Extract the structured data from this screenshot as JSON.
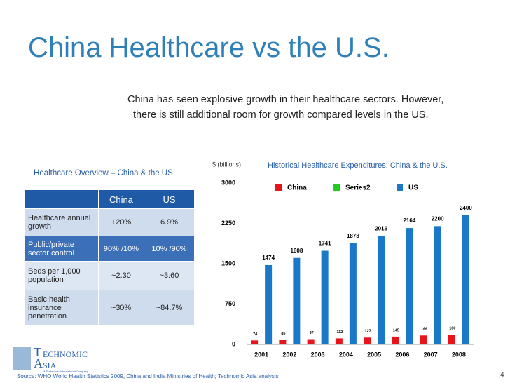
{
  "header": {
    "title": "China Healthcare vs the U.S.",
    "subtitle": [
      "China has seen explosive growth in their healthcare sectors. However,",
      "there is still additional room for growth compared levels in the US."
    ]
  },
  "table": {
    "caption": "Healthcare Overview – China & the US",
    "columns": [
      "China",
      "US"
    ],
    "rows": [
      [
        "Healthcare annual growth",
        "+20%",
        "6.9%"
      ],
      [
        "Public/private sector control",
        "90% /10%",
        "10% /90%"
      ],
      [
        "Beds per 1,000 population",
        "~2.30",
        "~3.60"
      ],
      [
        "Basic health insurance penetration",
        "~30%",
        "~84.7%"
      ]
    ]
  },
  "chart_data": {
    "type": "bar",
    "title": "Historical Healthcare Expenditures: China & the U.S.",
    "y_label": "$ (billions)",
    "categories": [
      "2001",
      "2002",
      "2003",
      "2004",
      "2005",
      "2006",
      "2007",
      "2008"
    ],
    "series": [
      {
        "name": "China",
        "color": "#e8141c",
        "values": [
          74,
          85,
          97,
          112,
          127,
          145,
          166,
          180
        ]
      },
      {
        "name": "Series2",
        "color": "#22cc22",
        "values": [
          null,
          null,
          null,
          null,
          null,
          null,
          null,
          null
        ]
      },
      {
        "name": "US",
        "color": "#1a78c8",
        "values": [
          1474,
          1608,
          1741,
          1878,
          2016,
          2164,
          2200,
          2400
        ]
      }
    ],
    "ylim": [
      0,
      3000
    ],
    "yticks": [
      0,
      750,
      1500,
      2250,
      3000
    ],
    "grid": false,
    "legend": "top"
  },
  "logo": {
    "name": [
      "T",
      "ECHNOMIC",
      "A",
      "SIA"
    ],
    "tagline": "A Technomic International Company"
  },
  "footer": {
    "source": "Source: WHO World Health Statistics 2009, China and India Ministries of Health; Technomic Asia analysis",
    "page": "4"
  }
}
